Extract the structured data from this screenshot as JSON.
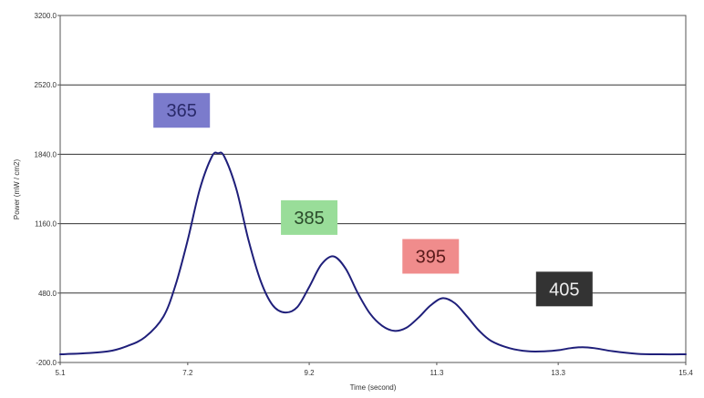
{
  "chart_data": {
    "type": "line",
    "title": "",
    "xlabel": "Time (second)",
    "ylabel": "Power (mW / cm2)",
    "xlim": [
      5.1,
      15.4
    ],
    "ylim": [
      -200.0,
      3200.0
    ],
    "x_ticks": [
      {
        "value": 5.1,
        "label": "5.1"
      },
      {
        "value": 7.2,
        "label": "7.2"
      },
      {
        "value": 9.2,
        "label": "9.2"
      },
      {
        "value": 11.3,
        "label": "11.3"
      },
      {
        "value": 13.3,
        "label": "13.3"
      },
      {
        "value": 15.4,
        "label": "15.4"
      }
    ],
    "y_ticks": [
      {
        "value": -200.0,
        "label": "-200.0"
      },
      {
        "value": 480.0,
        "label": "480.0"
      },
      {
        "value": 1160.0,
        "label": "1160.0"
      },
      {
        "value": 1840.0,
        "label": "1840.0"
      },
      {
        "value": 2520.0,
        "label": "2520.0"
      },
      {
        "value": 3200.0,
        "label": "3200.0"
      }
    ],
    "grid": {
      "horizontal": true,
      "vertical": false
    },
    "series_color": "#1f1f7a",
    "series": [
      {
        "x": [
          5.1,
          5.5,
          5.9,
          6.2,
          6.5,
          6.8,
          7.0,
          7.2,
          7.4,
          7.6,
          7.7,
          7.8,
          8.0,
          8.2,
          8.4,
          8.6,
          8.8,
          9.0,
          9.2,
          9.4,
          9.6,
          9.8,
          10.0,
          10.2,
          10.4,
          10.6,
          10.8,
          11.0,
          11.2,
          11.4,
          11.6,
          11.8,
          12.0,
          12.2,
          12.5,
          12.8,
          13.1,
          13.3,
          13.5,
          13.7,
          13.9,
          14.2,
          14.6,
          15.0,
          15.4
        ],
        "y": [
          -120,
          -110,
          -90,
          -40,
          50,
          250,
          560,
          1000,
          1500,
          1820,
          1850,
          1820,
          1500,
          1000,
          600,
          360,
          290,
          340,
          540,
          760,
          840,
          720,
          480,
          280,
          160,
          110,
          140,
          240,
          360,
          430,
          380,
          250,
          110,
          10,
          -60,
          -90,
          -90,
          -80,
          -60,
          -50,
          -60,
          -90,
          -115,
          -120,
          -120
        ]
      }
    ],
    "annotations": [
      {
        "text": "365",
        "x": 7.1,
        "y": 2270,
        "bg": "#7b7bcc",
        "fg": "#2a2a6a"
      },
      {
        "text": "385",
        "x": 9.2,
        "y": 1220,
        "bg": "#99dd99",
        "fg": "#2a4a2a"
      },
      {
        "text": "395",
        "x": 11.2,
        "y": 840,
        "bg": "#f08c8c",
        "fg": "#5a1a1a"
      },
      {
        "text": "405",
        "x": 13.4,
        "y": 520,
        "bg": "#333333",
        "fg": "#eeeeee"
      }
    ]
  }
}
